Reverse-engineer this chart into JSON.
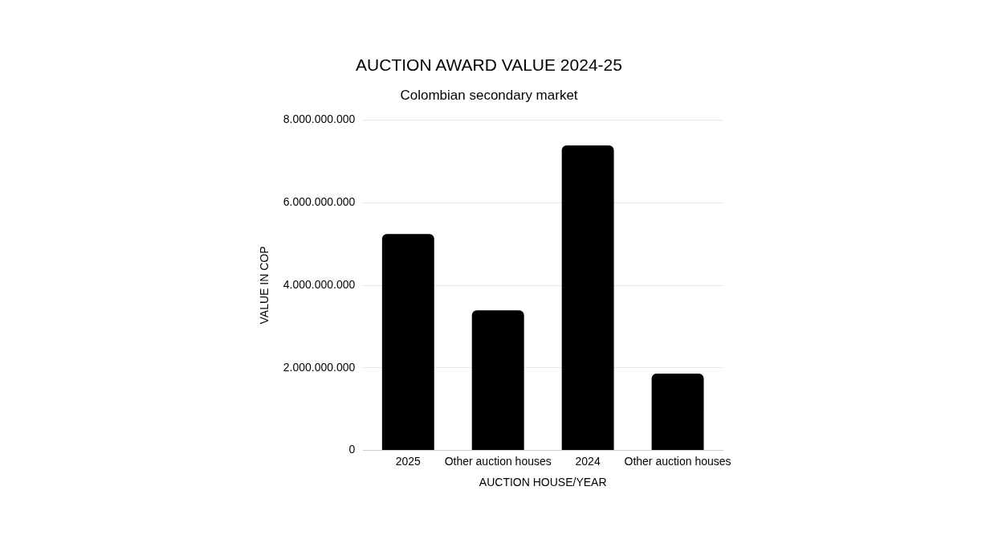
{
  "chart_data": {
    "type": "bar",
    "title": "AUCTION AWARD VALUE 2024-25",
    "subtitle": "Colombian secondary market",
    "xlabel": "AUCTION HOUSE/YEAR",
    "ylabel": "VALUE IN COP",
    "categories": [
      "2025",
      "Other auction houses",
      "2024",
      "Other auction houses"
    ],
    "values": [
      5240000000.0,
      3390000000.0,
      7390000000.0,
      1860000000.0
    ],
    "color": "#000000",
    "ylim": [
      0,
      8000000000.0
    ],
    "yticks": [
      0,
      {
        "value": 2000000000.0,
        "label": "2.000.000.000"
      },
      {
        "value": 4000000000.0,
        "label": "4.000.000.000"
      },
      {
        "value": 6000000000.0,
        "label": "6.000.000.000"
      },
      {
        "value": 8000000000.0,
        "label": "8.000.000.000"
      }
    ],
    "grid": "y",
    "legend": false
  }
}
